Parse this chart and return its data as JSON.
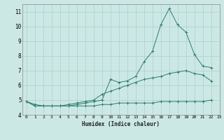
{
  "x": [
    0,
    1,
    2,
    3,
    4,
    5,
    6,
    7,
    8,
    9,
    10,
    11,
    12,
    13,
    14,
    15,
    16,
    17,
    18,
    19,
    20,
    21,
    22,
    23
  ],
  "line1": [
    4.9,
    4.6,
    4.6,
    4.6,
    4.6,
    4.6,
    4.7,
    4.8,
    4.9,
    5.0,
    6.4,
    6.2,
    6.3,
    6.6,
    7.6,
    8.3,
    10.1,
    11.2,
    10.1,
    9.6,
    8.1,
    7.3,
    7.2,
    null
  ],
  "line2": [
    4.9,
    4.7,
    4.6,
    4.6,
    4.6,
    4.7,
    4.8,
    4.9,
    5.0,
    5.4,
    5.6,
    5.8,
    6.0,
    6.2,
    6.4,
    6.5,
    6.6,
    6.8,
    6.9,
    7.0,
    6.8,
    6.7,
    6.3,
    null
  ],
  "line3": [
    4.9,
    4.6,
    4.6,
    4.6,
    4.6,
    4.6,
    4.6,
    4.6,
    4.6,
    4.7,
    4.7,
    4.8,
    4.8,
    4.8,
    4.8,
    4.8,
    4.9,
    4.9,
    4.9,
    4.9,
    4.9,
    4.9,
    5.0,
    null
  ],
  "xlabel": "Humidex (Indice chaleur)",
  "xlim": [
    -0.5,
    23
  ],
  "ylim": [
    4,
    11.5
  ],
  "yticks": [
    4,
    5,
    6,
    7,
    8,
    9,
    10,
    11
  ],
  "xticks": [
    0,
    1,
    2,
    3,
    4,
    5,
    6,
    7,
    8,
    9,
    10,
    11,
    12,
    13,
    14,
    15,
    16,
    17,
    18,
    19,
    20,
    21,
    22,
    23
  ],
  "line_color": "#2e7d6e",
  "bg_color": "#cce8e4",
  "grid_color": "#aacfcc",
  "marker": "+"
}
